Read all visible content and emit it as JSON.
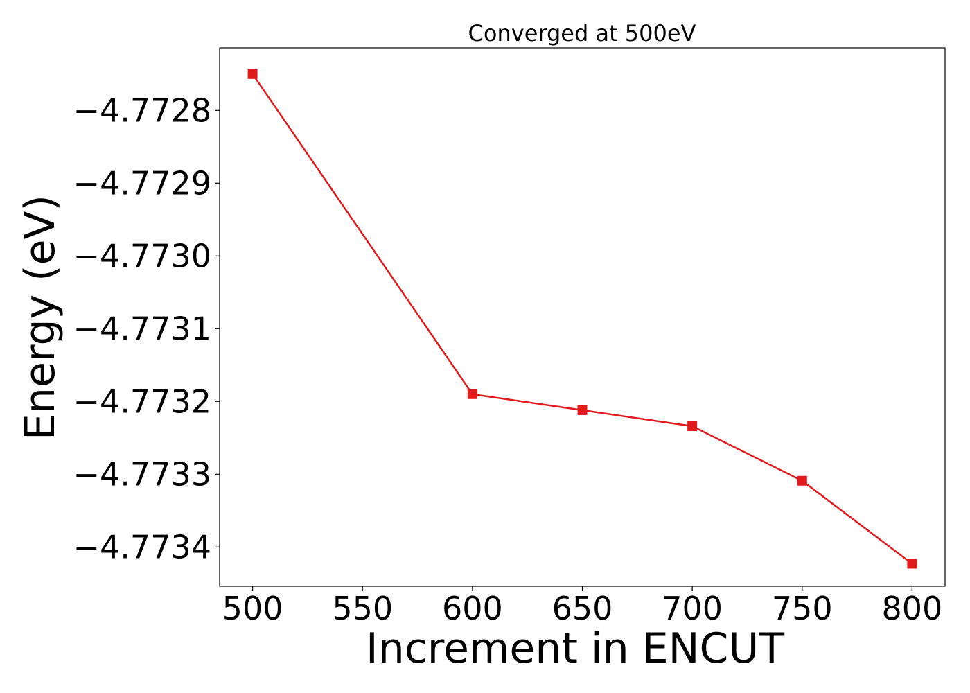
{
  "chart_data": {
    "type": "line",
    "title": "Converged at 500eV",
    "xlabel": "Increment in ENCUT",
    "ylabel": "Energy (eV)",
    "x": [
      500,
      600,
      650,
      700,
      750,
      800
    ],
    "series": [
      {
        "values": [
          -4.77275,
          -4.77319,
          -4.773212,
          -4.773234,
          -4.773309,
          -4.773423
        ],
        "color": "#e31a1c",
        "marker": "square"
      }
    ],
    "xlim": [
      485,
      815
    ],
    "ylim": [
      -4.773454,
      -4.772714
    ],
    "xticks": [
      500,
      550,
      600,
      650,
      700,
      750,
      800
    ],
    "xtick_labels": [
      "500",
      "550",
      "600",
      "650",
      "700",
      "750",
      "800"
    ],
    "yticks": [
      -4.7728,
      -4.7729,
      -4.773,
      -4.7731,
      -4.7732,
      -4.7733,
      -4.7734
    ],
    "ytick_labels": [
      "−4.7728",
      "−4.7729",
      "−4.7730",
      "−4.7731",
      "−4.7732",
      "−4.7733",
      "−4.7734"
    ],
    "grid": false,
    "legend": false
  }
}
